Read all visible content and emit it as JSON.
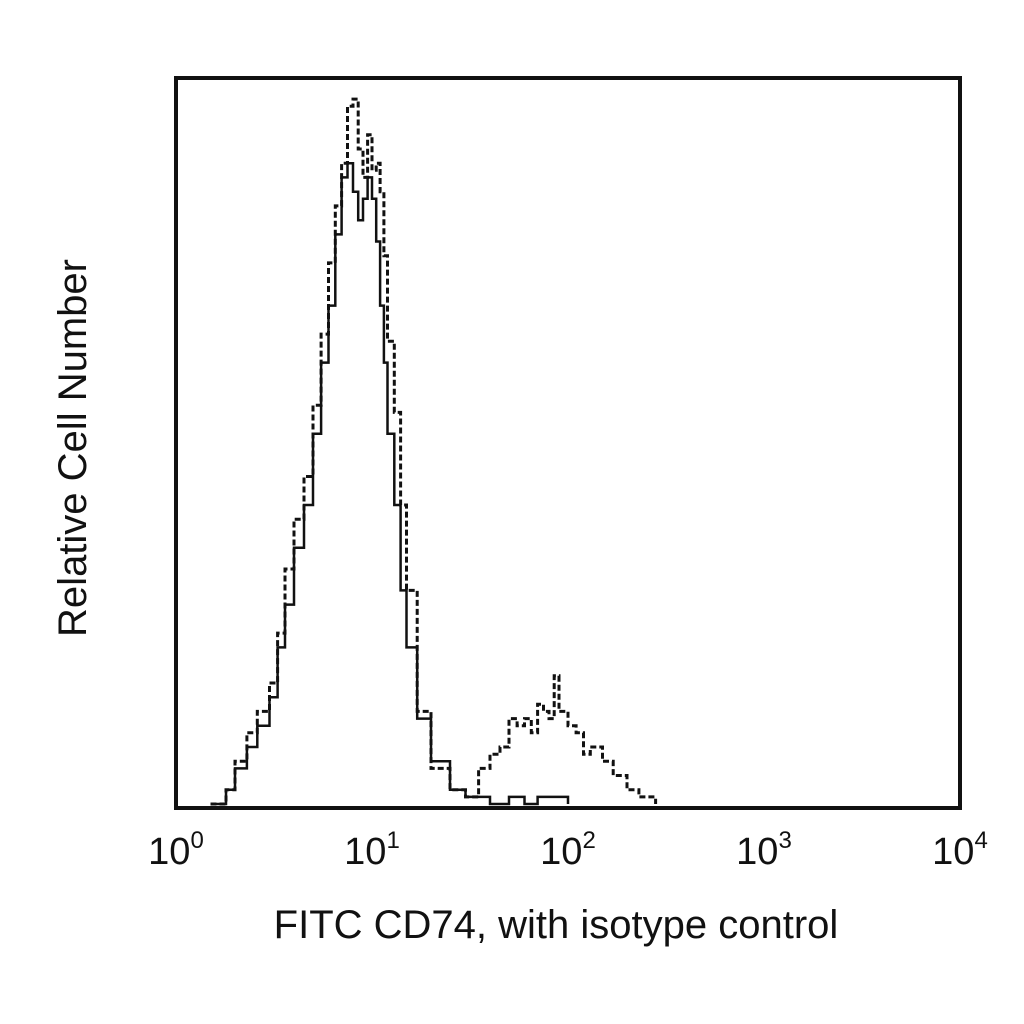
{
  "chart_data": {
    "type": "line",
    "title": "",
    "xlabel": "FITC CD74, with isotype control",
    "ylabel": "Relative Cell Number",
    "xscale": "log",
    "xlim": [
      1,
      10000
    ],
    "ylim": [
      0,
      1
    ],
    "grid": false,
    "x_ticks": [
      {
        "base": "10",
        "exp": "0",
        "value": 1
      },
      {
        "base": "10",
        "exp": "1",
        "value": 10
      },
      {
        "base": "10",
        "exp": "2",
        "value": 100
      },
      {
        "base": "10",
        "exp": "3",
        "value": 1000
      },
      {
        "base": "10",
        "exp": "4",
        "value": 10000
      }
    ],
    "series": [
      {
        "style": "solid",
        "x": [
          1.6,
          1.8,
          2.0,
          2.3,
          2.6,
          3.0,
          3.3,
          3.6,
          4.0,
          4.5,
          5.0,
          5.5,
          6.0,
          6.5,
          7.0,
          7.5,
          8.0,
          8.5,
          9.0,
          9.5,
          10.0,
          10.5,
          11.0,
          11.5,
          12.0,
          13.0,
          14.0,
          15.0,
          17.0,
          20.0,
          25.0,
          30.0,
          40.0,
          50.0,
          60.0,
          70.0,
          100.0
        ],
        "y": [
          0.0,
          0.02,
          0.05,
          0.08,
          0.11,
          0.15,
          0.22,
          0.28,
          0.36,
          0.42,
          0.52,
          0.62,
          0.7,
          0.8,
          0.88,
          0.9,
          0.86,
          0.82,
          0.85,
          0.88,
          0.85,
          0.79,
          0.7,
          0.62,
          0.52,
          0.42,
          0.3,
          0.22,
          0.12,
          0.06,
          0.02,
          0.01,
          0.0,
          0.01,
          0.0,
          0.01,
          0.0
        ]
      },
      {
        "style": "dashed",
        "x": [
          1.5,
          1.8,
          2.0,
          2.3,
          2.6,
          3.0,
          3.3,
          3.6,
          4.0,
          4.5,
          5.0,
          5.5,
          6.0,
          6.5,
          7.0,
          7.5,
          8.0,
          8.5,
          9.0,
          9.5,
          10.0,
          10.5,
          11.0,
          11.5,
          12.0,
          13.0,
          14.0,
          15.0,
          17.0,
          20.0,
          25.0,
          30.0,
          35.0,
          40.0,
          45.0,
          50.0,
          55.0,
          60.0,
          65.0,
          70.0,
          75.0,
          80.0,
          85.0,
          90.0,
          100.0,
          110.0,
          120.0,
          130.0,
          140.0,
          150.0,
          170.0,
          200.0,
          230.0,
          260.0,
          280.0
        ],
        "y": [
          0.0,
          0.02,
          0.06,
          0.1,
          0.13,
          0.17,
          0.24,
          0.33,
          0.4,
          0.46,
          0.56,
          0.66,
          0.76,
          0.84,
          0.9,
          0.98,
          0.99,
          0.92,
          0.88,
          0.94,
          0.89,
          0.9,
          0.86,
          0.77,
          0.65,
          0.55,
          0.42,
          0.3,
          0.13,
          0.05,
          0.02,
          0.01,
          0.05,
          0.07,
          0.08,
          0.12,
          0.11,
          0.12,
          0.1,
          0.14,
          0.13,
          0.12,
          0.18,
          0.13,
          0.11,
          0.1,
          0.07,
          0.08,
          0.08,
          0.06,
          0.04,
          0.02,
          0.01,
          0.01,
          0.0
        ]
      }
    ]
  }
}
